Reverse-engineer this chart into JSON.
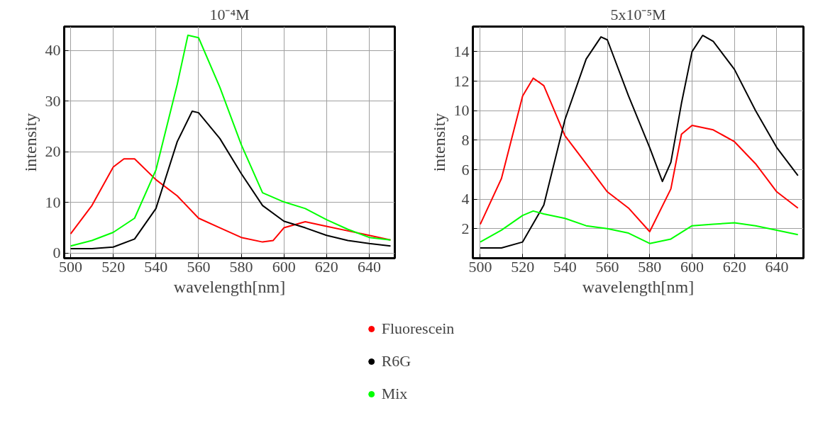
{
  "chart_data": [
    {
      "type": "line",
      "title": "10⁻⁴M",
      "xlabel": "wavelength[nm]",
      "ylabel": "intensity",
      "xlim": [
        497,
        652
      ],
      "ylim": [
        -1,
        44.7
      ],
      "xticks": [
        500,
        520,
        540,
        560,
        580,
        600,
        620,
        640
      ],
      "yticks": [
        0,
        10,
        20,
        30,
        40
      ],
      "grid": true,
      "legend": "bottom",
      "series": [
        {
          "name": "Fluorescein",
          "color": "#ff0000",
          "x": [
            500,
            510,
            520,
            525,
            530,
            540,
            550,
            560,
            570,
            580,
            590,
            595,
            600,
            610,
            620,
            630,
            640,
            650
          ],
          "values": [
            3.8,
            9.4,
            17.0,
            18.6,
            18.6,
            14.5,
            11.3,
            6.9,
            5.0,
            3.1,
            2.2,
            2.5,
            5.0,
            6.2,
            5.3,
            4.4,
            3.5,
            2.6
          ]
        },
        {
          "name": "R6G",
          "color": "#000000",
          "x": [
            500,
            510,
            520,
            530,
            540,
            550,
            557,
            560,
            570,
            580,
            590,
            600,
            610,
            620,
            630,
            640,
            650
          ],
          "values": [
            0.9,
            0.9,
            1.2,
            2.8,
            8.8,
            22.0,
            28.0,
            27.7,
            22.6,
            15.7,
            9.4,
            6.3,
            5.0,
            3.5,
            2.5,
            1.9,
            1.4
          ]
        },
        {
          "name": "Mix",
          "color": "#00ff00",
          "x": [
            500,
            510,
            520,
            530,
            540,
            550,
            555,
            560,
            570,
            580,
            590,
            600,
            610,
            620,
            630,
            640,
            650
          ],
          "values": [
            1.4,
            2.5,
            4.1,
            6.9,
            16.4,
            33.3,
            43.0,
            42.5,
            32.7,
            21.4,
            11.9,
            10.1,
            8.8,
            6.6,
            4.7,
            3.1,
            2.6
          ]
        }
      ]
    },
    {
      "type": "line",
      "title": "5x10⁻⁵M",
      "xlabel": "wavelength[nm]",
      "ylabel": "intensity",
      "xlim": [
        496.5,
        652.6
      ],
      "ylim": [
        0,
        15.7
      ],
      "xticks": [
        500,
        520,
        540,
        560,
        580,
        600,
        620,
        640
      ],
      "yticks": [
        2,
        4,
        6,
        8,
        10,
        12,
        14
      ],
      "grid": true,
      "series": [
        {
          "color": "#ff0000",
          "x": [
            500,
            510,
            520,
            525,
            530,
            540,
            550,
            560,
            570,
            580,
            590,
            595,
            600,
            610,
            620,
            630,
            640,
            650
          ],
          "values": [
            2.3,
            5.4,
            11.0,
            12.2,
            11.7,
            8.3,
            6.4,
            4.5,
            3.4,
            1.8,
            4.7,
            8.4,
            9.0,
            8.7,
            7.9,
            6.4,
            4.5,
            3.4
          ]
        },
        {
          "color": "#000000",
          "x": [
            500,
            510,
            520,
            530,
            540,
            550,
            557,
            560,
            570,
            580,
            586,
            590,
            595,
            600,
            605,
            610,
            620,
            630,
            640,
            650
          ],
          "values": [
            0.7,
            0.7,
            1.1,
            3.6,
            9.4,
            13.5,
            15.0,
            14.8,
            11.0,
            7.5,
            5.2,
            6.5,
            10.5,
            14.0,
            15.1,
            14.7,
            12.8,
            10.0,
            7.5,
            5.6
          ]
        },
        {
          "color": "#00ff00",
          "x": [
            500,
            510,
            520,
            525,
            530,
            540,
            550,
            560,
            570,
            580,
            590,
            600,
            610,
            620,
            630,
            640,
            650
          ],
          "values": [
            1.1,
            1.9,
            2.9,
            3.2,
            3.0,
            2.7,
            2.2,
            2.0,
            1.7,
            1.0,
            1.3,
            2.2,
            2.3,
            2.4,
            2.2,
            1.9,
            1.6
          ]
        }
      ]
    }
  ]
}
